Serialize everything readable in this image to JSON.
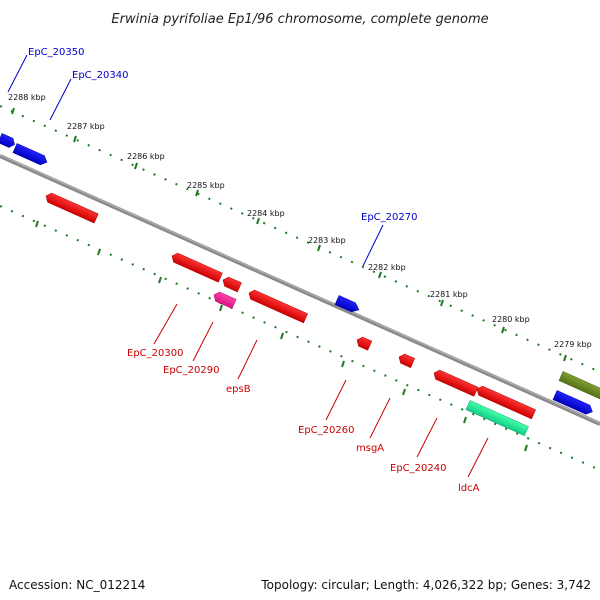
{
  "title": "Erwinia pyrifoliae Ep1/96 chromosome, complete genome",
  "footer": {
    "accession": "Accession: NC_012214",
    "summary": "Topology: circular; Length: 4,026,322 bp; Genes: 3,742"
  },
  "colors": {
    "backbone": "#888888",
    "tick": "#1f7a1f",
    "forward_label": "#0000cc",
    "reverse_label": "#cc0000",
    "cds_red": "#ee1111",
    "cds_blue": "#1111dd",
    "cds_pink": "#ee2299",
    "cds_olive": "#6b8e23",
    "cds_teal": "#22ee99"
  },
  "scale": {
    "unit": "kbp",
    "ticks": [
      "2288 kbp",
      "2287 kbp",
      "2286 kbp",
      "2285 kbp",
      "2284 kbp",
      "2283 kbp",
      "2282 kbp",
      "2281 kbp",
      "2280 kbp",
      "2279 kbp"
    ]
  },
  "forward_labels": [
    "EpC_20350",
    "EpC_20340",
    "EpC_20270"
  ],
  "reverse_labels": [
    "EpC_20300",
    "EpC_20290",
    "epsB",
    "EpC_20260",
    "msgA",
    "EpC_20240",
    "ldcA"
  ]
}
